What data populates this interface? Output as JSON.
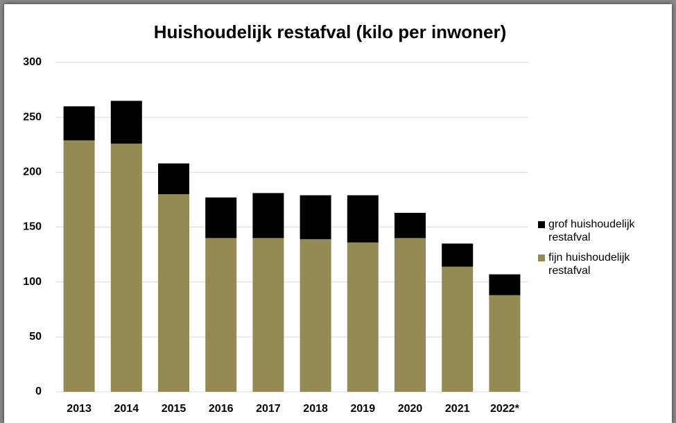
{
  "chart_data": {
    "type": "stacked_bar",
    "title": "Huishoudelijk restafval (kilo per inwoner)",
    "categories": [
      "2013",
      "2014",
      "2015",
      "2016",
      "2017",
      "2018",
      "2019",
      "2020",
      "2021",
      "2022*"
    ],
    "series": [
      {
        "name": "fijn huishoudelijk restafval",
        "color": "#948b54",
        "values": [
          229,
          226,
          180,
          140,
          140,
          139,
          136,
          140,
          114,
          88
        ]
      },
      {
        "name": "grof huishoudelijk restafval",
        "color": "#000000",
        "values": [
          31,
          39,
          28,
          37,
          41,
          40,
          43,
          23,
          21,
          19
        ]
      }
    ],
    "ylim": [
      0,
      300
    ],
    "yticks": [
      0,
      50,
      100,
      150,
      200,
      250,
      300
    ],
    "grid": true,
    "legend": "right"
  }
}
